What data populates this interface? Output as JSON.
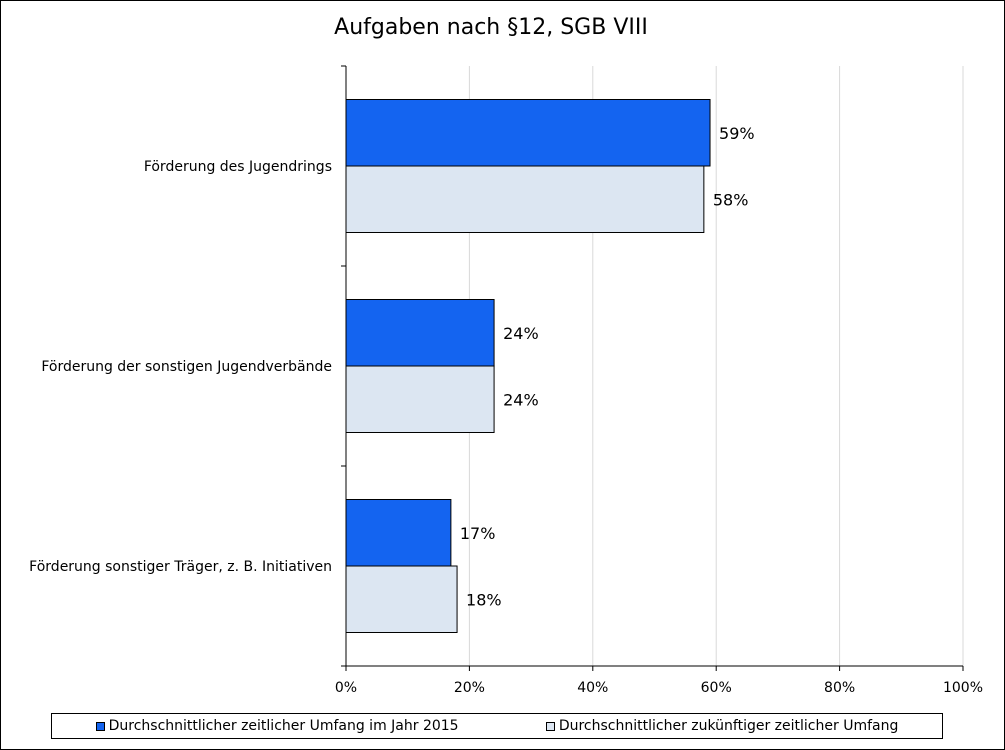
{
  "chart_data": {
    "type": "bar",
    "orientation": "horizontal",
    "title": "Aufgaben nach §12, SGB VIII",
    "categories": [
      "Förderung des Jugendrings",
      "Förderung der sonstigen Jugendverbände",
      "Förderung sonstiger Träger, z. B. Initiativen"
    ],
    "series": [
      {
        "name": "Durchschnittlicher zeitlicher Umfang im Jahr 2015",
        "values": [
          59,
          24,
          17
        ],
        "labels": [
          "59%",
          "24%",
          "17%"
        ],
        "color": "#1464f0"
      },
      {
        "name": "Durchschnittlicher zukünftiger zeitlicher Umfang",
        "values": [
          58,
          24,
          18
        ],
        "labels": [
          "58%",
          "24%",
          "18%"
        ],
        "color": "#dce6f2"
      }
    ],
    "xlim": [
      0,
      100
    ],
    "xticks": [
      0,
      20,
      40,
      60,
      80,
      100
    ],
    "xtick_labels": [
      "0%",
      "20%",
      "40%",
      "60%",
      "80%",
      "100%"
    ],
    "xlabel": "",
    "ylabel": "",
    "grid": true,
    "legend_position": "bottom"
  }
}
